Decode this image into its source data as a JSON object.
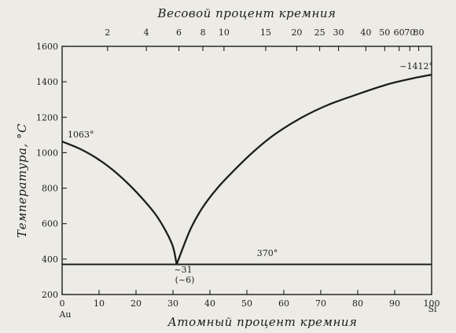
{
  "chart_data": {
    "type": "line",
    "title": "",
    "top_axis_label": "Весовой процент кремния",
    "xlabel": "Атомный процент кремния",
    "ylabel": "Температура, °С",
    "xlim": [
      0,
      100
    ],
    "ylim": [
      200,
      1600
    ],
    "x_ticks": [
      0,
      10,
      20,
      30,
      40,
      50,
      60,
      70,
      80,
      90,
      100
    ],
    "y_ticks": [
      200,
      400,
      600,
      800,
      1000,
      1200,
      1400,
      1600
    ],
    "top_ticks": [
      {
        "label": "2",
        "at_pct": 12.3
      },
      {
        "label": "4",
        "at_pct": 22.8
      },
      {
        "label": "6",
        "at_pct": 31.6
      },
      {
        "label": "8",
        "at_pct": 38.1
      },
      {
        "label": "10",
        "at_pct": 43.8
      },
      {
        "label": "15",
        "at_pct": 55.1
      },
      {
        "label": "20",
        "at_pct": 63.5
      },
      {
        "label": "25",
        "at_pct": 69.7
      },
      {
        "label": "30",
        "at_pct": 74.8
      },
      {
        "label": "40",
        "at_pct": 82.2
      },
      {
        "label": "50",
        "at_pct": 87.3
      },
      {
        "label": "60",
        "at_pct": 91.2
      },
      {
        "label": "70",
        "at_pct": 94.1
      },
      {
        "label": "80",
        "at_pct": 96.5
      }
    ],
    "end_labels": {
      "left": "Au",
      "right": "Si"
    },
    "series": [
      {
        "x": [
          0,
          5,
          10,
          15,
          20,
          25,
          28,
          30,
          31
        ],
        "y": [
          1063,
          1020,
          960,
          880,
          780,
          660,
          560,
          470,
          370
        ]
      },
      {
        "x": [
          31,
          33,
          35,
          38,
          42,
          47,
          52,
          58,
          65,
          72,
          80,
          88,
          95,
          100
        ],
        "y": [
          370,
          480,
          580,
          690,
          800,
          910,
          1010,
          1110,
          1200,
          1270,
          1330,
          1385,
          1420,
          1440
        ]
      },
      {
        "x": [
          0,
          100
        ],
        "y": [
          370,
          370
        ]
      }
    ],
    "annotations": {
      "au_melt": {
        "text": "1063°",
        "x": 0,
        "y": 1063
      },
      "si_melt": {
        "text": "~1412°",
        "x": 100,
        "y": 1440
      },
      "eutectic_temp": {
        "text": "370°",
        "x": 55,
        "y": 370
      },
      "eutectic_at": {
        "text": "~31",
        "x": 31,
        "y": 370
      },
      "eutectic_wt": {
        "text": "(~6)",
        "x": 31,
        "y": 370
      }
    },
    "grid": false,
    "legend": "none"
  }
}
